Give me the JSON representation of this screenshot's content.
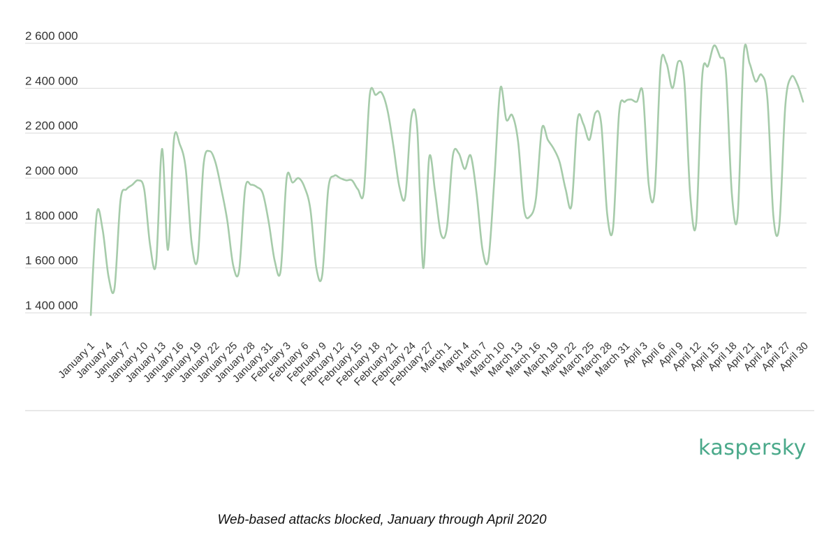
{
  "colors": {
    "line": "#A6CBAA",
    "grid": "#D9D9D9",
    "brand": "#4AA98A",
    "text": "#333333"
  },
  "logo": {
    "text": "kaspersky"
  },
  "caption": "Web-based attacks blocked, January through April 2020",
  "chart_data": {
    "type": "line",
    "title": "",
    "xlabel": "",
    "ylabel": "",
    "ylim": [
      1400000,
      2600000
    ],
    "yticks": [
      1400000,
      1600000,
      1800000,
      2000000,
      2200000,
      2400000,
      2600000
    ],
    "ytick_labels": [
      "1 400 000",
      "1 600 000",
      "1 800 000",
      "2 000 000",
      "2 200 000",
      "2 400 000",
      "2 600 000"
    ],
    "xtick_labels": [
      "January 1",
      "January 4",
      "January 7",
      "January 10",
      "January 13",
      "January 16",
      "January 19",
      "January 22",
      "January 25",
      "January 28",
      "January 31",
      "February 3",
      "February 6",
      "February 9",
      "February 12",
      "February 15",
      "February 18",
      "February 21",
      "February 24",
      "February 27",
      "March 1",
      "March 4",
      "March 7",
      "March 10",
      "March 13",
      "March 16",
      "March 19",
      "March 22",
      "March 25",
      "March 28",
      "March 31",
      "April 3",
      "April 6",
      "April 9",
      "April 12",
      "April 15",
      "April 18",
      "April 21",
      "April 24",
      "April 27",
      "April 30"
    ],
    "grid": true,
    "legend": "none",
    "series": [
      {
        "values": [
          1390000,
          1840000,
          1770000,
          1560000,
          1510000,
          1900000,
          1950000,
          1970000,
          1990000,
          1950000,
          1700000,
          1620000,
          2130000,
          1680000,
          2170000,
          2150000,
          2040000,
          1710000,
          1640000,
          2060000,
          2120000,
          2070000,
          1950000,
          1810000,
          1610000,
          1590000,
          1950000,
          1970000,
          1960000,
          1930000,
          1800000,
          1630000,
          1590000,
          2000000,
          1980000,
          2000000,
          1960000,
          1860000,
          1600000,
          1570000,
          1950000,
          2010000,
          2000000,
          1990000,
          1990000,
          1950000,
          1940000,
          2370000,
          2370000,
          2380000,
          2300000,
          2140000,
          1960000,
          1920000,
          2270000,
          2220000,
          1600000,
          2090000,
          1940000,
          1750000,
          1780000,
          2100000,
          2110000,
          2040000,
          2100000,
          1930000,
          1680000,
          1640000,
          2000000,
          2400000,
          2260000,
          2280000,
          2160000,
          1860000,
          1830000,
          1910000,
          2220000,
          2170000,
          2130000,
          2070000,
          1950000,
          1880000,
          2260000,
          2240000,
          2170000,
          2290000,
          2240000,
          1840000,
          1780000,
          2290000,
          2340000,
          2350000,
          2340000,
          2380000,
          1970000,
          1940000,
          2500000,
          2510000,
          2400000,
          2520000,
          2430000,
          1920000,
          1800000,
          2450000,
          2500000,
          2590000,
          2540000,
          2470000,
          1930000,
          1840000,
          2550000,
          2510000,
          2430000,
          2460000,
          2350000,
          1830000,
          1790000,
          2320000,
          2450000,
          2420000,
          2340000
        ]
      }
    ]
  }
}
